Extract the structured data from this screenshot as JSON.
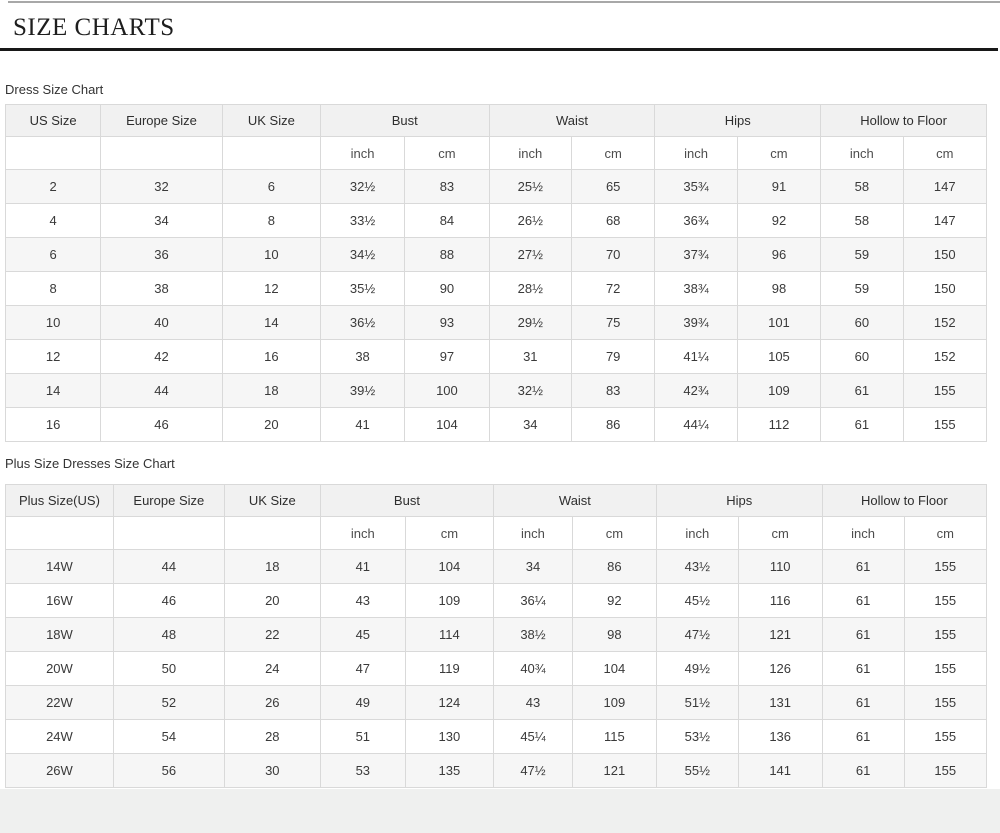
{
  "page": {
    "title": "SIZE CHARTS"
  },
  "colors": {
    "title_rule": "#181818",
    "header_bg": "#f1f1f1",
    "stripe_bg": "#f6f6f6",
    "border": "#d9d9d9",
    "footer_bg": "#eff0ef"
  },
  "tables": [
    {
      "caption": "Dress Size Chart",
      "column_groups": [
        {
          "label": "US Size",
          "span": 1
        },
        {
          "label": "Europe Size",
          "span": 1
        },
        {
          "label": "UK Size",
          "span": 1
        },
        {
          "label": "Bust",
          "span": 2
        },
        {
          "label": "Waist",
          "span": 2
        },
        {
          "label": "Hips",
          "span": 2
        },
        {
          "label": "Hollow to Floor",
          "span": 2
        }
      ],
      "unit_row": [
        "",
        "",
        "",
        "inch",
        "cm",
        "inch",
        "cm",
        "inch",
        "cm",
        "inch",
        "cm"
      ],
      "rows": [
        [
          "2",
          "32",
          "6",
          "32½",
          "83",
          "25½",
          "65",
          "35¾",
          "91",
          "58",
          "147"
        ],
        [
          "4",
          "34",
          "8",
          "33½",
          "84",
          "26½",
          "68",
          "36¾",
          "92",
          "58",
          "147"
        ],
        [
          "6",
          "36",
          "10",
          "34½",
          "88",
          "27½",
          "70",
          "37¾",
          "96",
          "59",
          "150"
        ],
        [
          "8",
          "38",
          "12",
          "35½",
          "90",
          "28½",
          "72",
          "38¾",
          "98",
          "59",
          "150"
        ],
        [
          "10",
          "40",
          "14",
          "36½",
          "93",
          "29½",
          "75",
          "39¾",
          "101",
          "60",
          "152"
        ],
        [
          "12",
          "42",
          "16",
          "38",
          "97",
          "31",
          "79",
          "41¼",
          "105",
          "60",
          "152"
        ],
        [
          "14",
          "44",
          "18",
          "39½",
          "100",
          "32½",
          "83",
          "42¾",
          "109",
          "61",
          "155"
        ],
        [
          "16",
          "46",
          "20",
          "41",
          "104",
          "34",
          "86",
          "44¼",
          "112",
          "61",
          "155"
        ]
      ]
    },
    {
      "caption": "Plus Size Dresses Size Chart",
      "column_groups": [
        {
          "label": "Plus Size(US)",
          "span": 1
        },
        {
          "label": "Europe Size",
          "span": 1
        },
        {
          "label": "UK Size",
          "span": 1
        },
        {
          "label": "Bust",
          "span": 2
        },
        {
          "label": "Waist",
          "span": 2
        },
        {
          "label": "Hips",
          "span": 2
        },
        {
          "label": "Hollow to Floor",
          "span": 2
        }
      ],
      "unit_row": [
        "",
        "",
        "",
        "inch",
        "cm",
        "inch",
        "cm",
        "inch",
        "cm",
        "inch",
        "cm"
      ],
      "rows": [
        [
          "14W",
          "44",
          "18",
          "41",
          "104",
          "34",
          "86",
          "43½",
          "110",
          "61",
          "155"
        ],
        [
          "16W",
          "46",
          "20",
          "43",
          "109",
          "36¼",
          "92",
          "45½",
          "116",
          "61",
          "155"
        ],
        [
          "18W",
          "48",
          "22",
          "45",
          "114",
          "38½",
          "98",
          "47½",
          "121",
          "61",
          "155"
        ],
        [
          "20W",
          "50",
          "24",
          "47",
          "119",
          "40¾",
          "104",
          "49½",
          "126",
          "61",
          "155"
        ],
        [
          "22W",
          "52",
          "26",
          "49",
          "124",
          "43",
          "109",
          "51½",
          "131",
          "61",
          "155"
        ],
        [
          "24W",
          "54",
          "28",
          "51",
          "130",
          "45¼",
          "115",
          "53½",
          "136",
          "61",
          "155"
        ],
        [
          "26W",
          "56",
          "30",
          "53",
          "135",
          "47½",
          "121",
          "55½",
          "141",
          "61",
          "155"
        ]
      ]
    }
  ]
}
